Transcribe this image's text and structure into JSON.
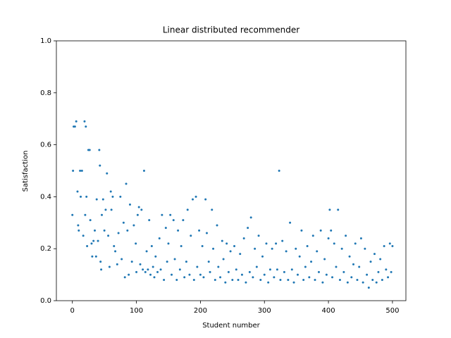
{
  "chart_data": {
    "type": "scatter",
    "title": "Linear distributed recommender",
    "xlabel": "Student number",
    "ylabel": "Satisfaction",
    "xlim": [
      -25,
      521
    ],
    "ylim": [
      0,
      1
    ],
    "xticks": [
      0,
      100,
      200,
      300,
      400,
      500
    ],
    "yticks": [
      {
        "value": 0,
        "label": "0.0"
      },
      0.2,
      0.4,
      0.6,
      0.8,
      {
        "value": 1,
        "label": "1.0"
      }
    ],
    "color": "#1f77b4",
    "x": [
      0,
      1,
      2,
      4,
      6,
      8,
      9,
      10,
      12,
      13,
      15,
      17,
      19,
      20,
      21,
      22,
      23,
      25,
      27,
      28,
      30,
      31,
      33,
      35,
      37,
      38,
      40,
      42,
      43,
      44,
      45,
      46,
      48,
      50,
      52,
      54,
      56,
      58,
      60,
      61,
      63,
      65,
      67,
      70,
      72,
      75,
      77,
      80,
      82,
      84,
      86,
      88,
      90,
      93,
      96,
      99,
      100,
      102,
      104,
      106,
      108,
      110,
      112,
      114,
      116,
      118,
      120,
      122,
      124,
      126,
      128,
      130,
      133,
      136,
      138,
      140,
      143,
      146,
      148,
      150,
      153,
      155,
      158,
      160,
      163,
      165,
      168,
      170,
      173,
      175,
      178,
      180,
      183,
      185,
      188,
      190,
      193,
      195,
      198,
      200,
      203,
      205,
      208,
      210,
      213,
      215,
      218,
      220,
      223,
      226,
      228,
      231,
      234,
      236,
      239,
      241,
      244,
      247,
      250,
      253,
      256,
      259,
      262,
      265,
      268,
      271,
      274,
      277,
      279,
      282,
      285,
      288,
      291,
      294,
      297,
      300,
      303,
      306,
      309,
      312,
      315,
      318,
      320,
      323,
      325,
      328,
      331,
      334,
      337,
      340,
      343,
      346,
      349,
      352,
      355,
      358,
      361,
      364,
      367,
      370,
      373,
      376,
      379,
      382,
      385,
      388,
      391,
      394,
      397,
      400,
      402,
      404,
      406,
      409,
      412,
      415,
      418,
      421,
      424,
      427,
      430,
      433,
      436,
      439,
      442,
      445,
      448,
      451,
      454,
      457,
      460,
      463,
      466,
      469,
      472,
      475,
      478,
      481,
      484,
      487,
      490,
      493,
      496,
      498,
      500
    ],
    "values": [
      0.33,
      0.5,
      0.67,
      0.67,
      0.69,
      0.42,
      0.29,
      0.27,
      0.5,
      0.4,
      0.5,
      0.25,
      0.69,
      0.33,
      0.67,
      0.4,
      0.21,
      0.58,
      0.58,
      0.31,
      0.22,
      0.17,
      0.23,
      0.27,
      0.17,
      0.39,
      0.23,
      0.58,
      0.52,
      0.15,
      0.12,
      0.33,
      0.39,
      0.27,
      0.35,
      0.49,
      0.25,
      0.13,
      0.42,
      0.35,
      0.4,
      0.21,
      0.19,
      0.14,
      0.26,
      0.4,
      0.16,
      0.3,
      0.09,
      0.45,
      0.27,
      0.1,
      0.37,
      0.15,
      0.29,
      0.22,
      0.11,
      0.33,
      0.36,
      0.14,
      0.35,
      0.12,
      0.5,
      0.11,
      0.19,
      0.12,
      0.31,
      0.1,
      0.21,
      0.13,
      0.09,
      0.17,
      0.11,
      0.24,
      0.12,
      0.33,
      0.08,
      0.28,
      0.15,
      0.22,
      0.33,
      0.1,
      0.31,
      0.16,
      0.08,
      0.27,
      0.12,
      0.21,
      0.31,
      0.09,
      0.15,
      0.35,
      0.1,
      0.25,
      0.39,
      0.08,
      0.4,
      0.13,
      0.27,
      0.1,
      0.21,
      0.09,
      0.39,
      0.26,
      0.15,
      0.11,
      0.35,
      0.2,
      0.08,
      0.29,
      0.13,
      0.09,
      0.23,
      0.16,
      0.07,
      0.22,
      0.11,
      0.19,
      0.08,
      0.21,
      0.12,
      0.08,
      0.18,
      0.1,
      0.24,
      0.07,
      0.28,
      0.11,
      0.32,
      0.09,
      0.2,
      0.13,
      0.25,
      0.08,
      0.17,
      0.1,
      0.22,
      0.07,
      0.12,
      0.2,
      0.09,
      0.22,
      0.12,
      0.5,
      0.08,
      0.23,
      0.11,
      0.19,
      0.08,
      0.3,
      0.12,
      0.07,
      0.2,
      0.1,
      0.17,
      0.27,
      0.08,
      0.13,
      0.21,
      0.09,
      0.15,
      0.25,
      0.08,
      0.19,
      0.11,
      0.27,
      0.07,
      0.16,
      0.1,
      0.24,
      0.35,
      0.27,
      0.09,
      0.22,
      0.13,
      0.35,
      0.08,
      0.2,
      0.11,
      0.25,
      0.07,
      0.17,
      0.09,
      0.14,
      0.22,
      0.08,
      0.13,
      0.24,
      0.07,
      0.2,
      0.1,
      0.05,
      0.15,
      0.08,
      0.18,
      0.07,
      0.11,
      0.16,
      0.08,
      0.21,
      0.12,
      0.09,
      0.22,
      0.11,
      0.21
    ]
  }
}
